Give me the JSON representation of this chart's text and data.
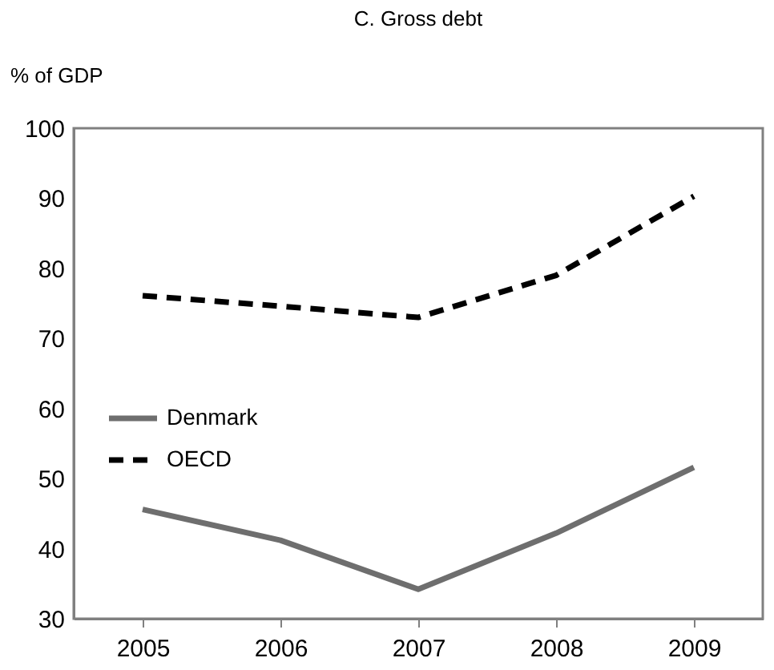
{
  "chart_data": {
    "type": "line",
    "title": "C. Gross debt",
    "ylabel": "% of GDP",
    "categories": [
      "2005",
      "2006",
      "2007",
      "2008",
      "2009"
    ],
    "series": [
      {
        "name": "Denmark",
        "color": "#6e6e6e",
        "line_style": "solid",
        "values": [
          45.6,
          41.2,
          34.2,
          42.2,
          51.6
        ]
      },
      {
        "name": "OECD",
        "color": "#000000",
        "line_style": "dashed",
        "values": [
          76.1,
          74.6,
          73.0,
          79.0,
          90.3
        ]
      }
    ],
    "ylim": [
      30,
      100
    ],
    "yticks": [
      30,
      40,
      50,
      60,
      70,
      80,
      90,
      100
    ],
    "grid": false,
    "legend": "left",
    "marker": "none"
  }
}
